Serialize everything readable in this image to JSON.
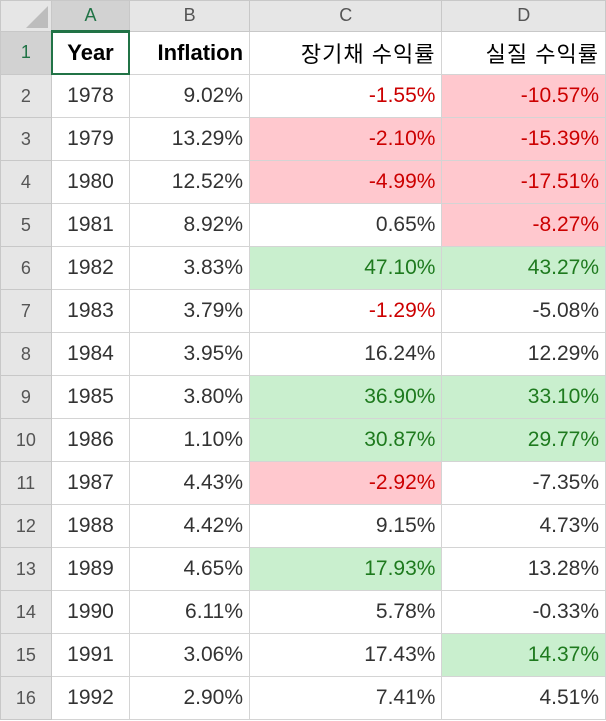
{
  "columns": [
    "A",
    "B",
    "C",
    "D"
  ],
  "headers": {
    "a": "Year",
    "b": "Inflation",
    "c": "장기채 수익률",
    "d": "실질 수익률"
  },
  "rows": [
    {
      "n": "2",
      "a": "1978",
      "b": "9.02%",
      "c": "-1.55%",
      "d": "-10.57%"
    },
    {
      "n": "3",
      "a": "1979",
      "b": "13.29%",
      "c": "-2.10%",
      "d": "-15.39%"
    },
    {
      "n": "4",
      "a": "1980",
      "b": "12.52%",
      "c": "-4.99%",
      "d": "-17.51%"
    },
    {
      "n": "5",
      "a": "1981",
      "b": "8.92%",
      "c": "0.65%",
      "d": "-8.27%"
    },
    {
      "n": "6",
      "a": "1982",
      "b": "3.83%",
      "c": "47.10%",
      "d": "43.27%"
    },
    {
      "n": "7",
      "a": "1983",
      "b": "3.79%",
      "c": "-1.29%",
      "d": "-5.08%"
    },
    {
      "n": "8",
      "a": "1984",
      "b": "3.95%",
      "c": "16.24%",
      "d": "12.29%"
    },
    {
      "n": "9",
      "a": "1985",
      "b": "3.80%",
      "c": "36.90%",
      "d": "33.10%"
    },
    {
      "n": "10",
      "a": "1986",
      "b": "1.10%",
      "c": "30.87%",
      "d": "29.77%"
    },
    {
      "n": "11",
      "a": "1987",
      "b": "4.43%",
      "c": "-2.92%",
      "d": "-7.35%"
    },
    {
      "n": "12",
      "a": "1988",
      "b": "4.42%",
      "c": "9.15%",
      "d": "4.73%"
    },
    {
      "n": "13",
      "a": "1989",
      "b": "4.65%",
      "c": "17.93%",
      "d": "13.28%"
    },
    {
      "n": "14",
      "a": "1990",
      "b": "6.11%",
      "c": "5.78%",
      "d": "-0.33%"
    },
    {
      "n": "15",
      "a": "1991",
      "b": "3.06%",
      "c": "17.43%",
      "d": "14.37%"
    },
    {
      "n": "16",
      "a": "1992",
      "b": "2.90%",
      "c": "7.41%",
      "d": "4.51%"
    }
  ],
  "colors": {
    "neg_fill": "#ffc8ce",
    "neg_text": "#cc0000",
    "pos_fill": "#c9efce",
    "pos_text": "#1e7a1e",
    "selection": "#217346"
  }
}
